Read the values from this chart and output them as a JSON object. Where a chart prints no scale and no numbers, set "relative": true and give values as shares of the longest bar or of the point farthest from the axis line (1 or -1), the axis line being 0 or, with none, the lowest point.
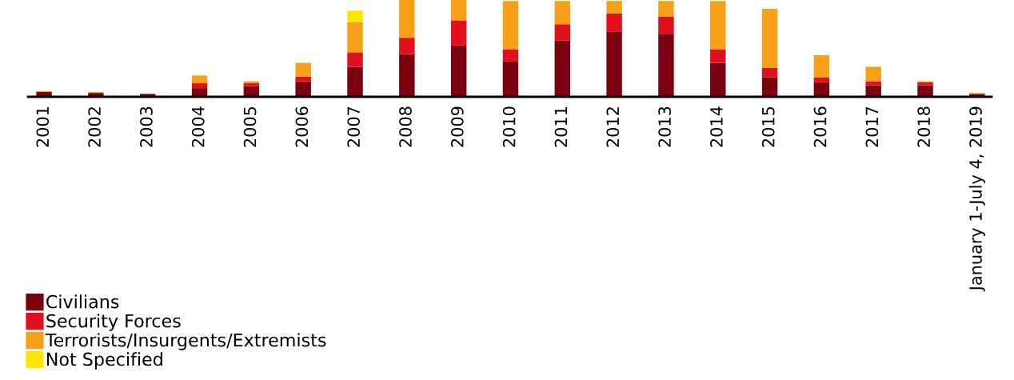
{
  "chart_data": {
    "type": "bar",
    "stacked": true,
    "relative": true,
    "legend": "bottom left",
    "grid": false,
    "categories": [
      "2001",
      "2002",
      "2003",
      "2004",
      "2005",
      "2006",
      "2007",
      "2008",
      "2009",
      "2010",
      "2011",
      "2012",
      "2013",
      "2014",
      "2015",
      "2016",
      "2017",
      "2018",
      "January 1-July 4, 2019"
    ],
    "series": [
      {
        "name": "Civilians",
        "color": "#7a0010",
        "values": [
          0.05,
          0.04,
          0.03,
          0.09,
          0.11,
          0.16,
          0.31,
          0.44,
          0.53,
          0.37,
          0.58,
          0.67,
          0.65,
          0.35,
          0.2,
          0.15,
          0.12,
          0.12,
          0.03
        ]
      },
      {
        "name": "Security Forces",
        "color": "#e0101e",
        "values": [
          0,
          0,
          0,
          0.05,
          0.03,
          0.05,
          0.15,
          0.17,
          0.26,
          0.12,
          0.17,
          0.19,
          0.18,
          0.14,
          0.1,
          0.05,
          0.04,
          0.03,
          null
        ]
      },
      {
        "name": "Terrorists/Insurgents/Extremists",
        "color": "#f9a01b",
        "values": [
          0.01,
          0.01,
          0,
          0.08,
          0.02,
          0.14,
          0.31,
          0.39,
          0.21,
          0.5,
          0.24,
          0.13,
          0.16,
          0.5,
          0.61,
          0.23,
          0.15,
          0.01,
          0.01
        ]
      },
      {
        "name": "Not Specified",
        "color": "#ffe600",
        "values": [
          0,
          0,
          0,
          0,
          0,
          0,
          0.12,
          0,
          0,
          0,
          0,
          0,
          0,
          0,
          0,
          0,
          0,
          0,
          0
        ]
      }
    ]
  }
}
